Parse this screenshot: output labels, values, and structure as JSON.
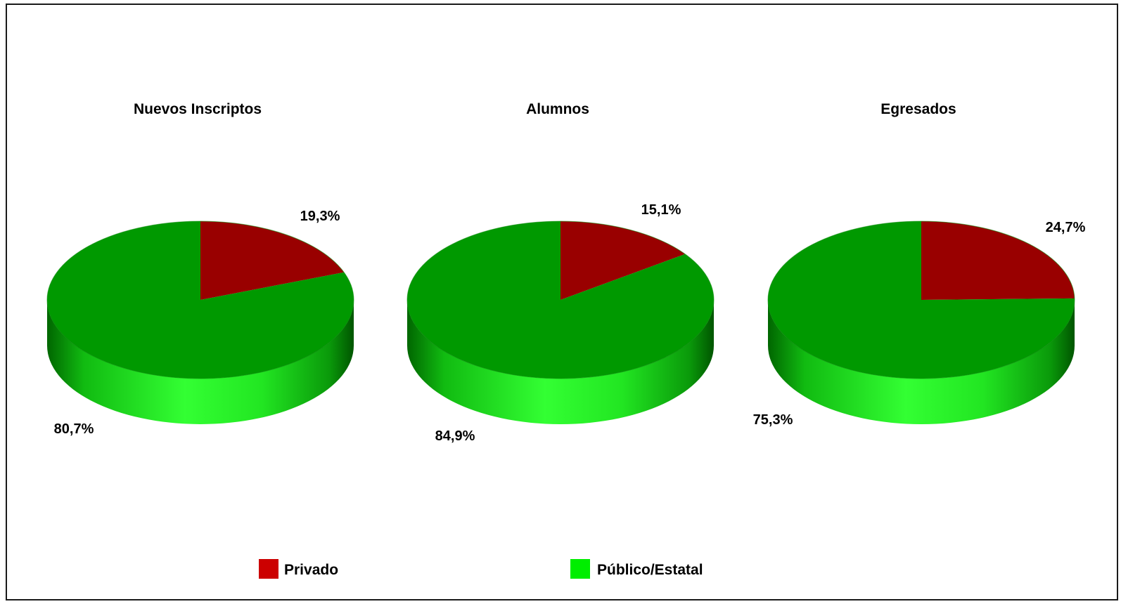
{
  "chart_data": [
    {
      "type": "pie",
      "title": "Nuevos Inscriptos",
      "categories": [
        "Privado",
        "Público/Estatal"
      ],
      "values": [
        19.3,
        80.7
      ],
      "labels": [
        "19,3%",
        "80,7%"
      ]
    },
    {
      "type": "pie",
      "title": "Alumnos",
      "categories": [
        "Privado",
        "Público/Estatal"
      ],
      "values": [
        15.1,
        84.9
      ],
      "labels": [
        "15,1%",
        "84,9%"
      ]
    },
    {
      "type": "pie",
      "title": "Egresados",
      "categories": [
        "Privado",
        "Público/Estatal"
      ],
      "values": [
        24.7,
        75.3
      ],
      "labels": [
        "24,7%",
        "75,3%"
      ]
    }
  ],
  "legend": {
    "placement": "bottom",
    "items": [
      {
        "label": "Privado",
        "color": "#cc0000"
      },
      {
        "label": "Público/Estatal",
        "color": "#00ee00"
      }
    ]
  },
  "colors": {
    "privado_top": "#990000",
    "publico_top": "#009900",
    "publico_side_light": "#22ff22",
    "publico_side_dark": "#007700",
    "privado_side_light": "#dd1111",
    "privado_side_dark": "#660000"
  }
}
